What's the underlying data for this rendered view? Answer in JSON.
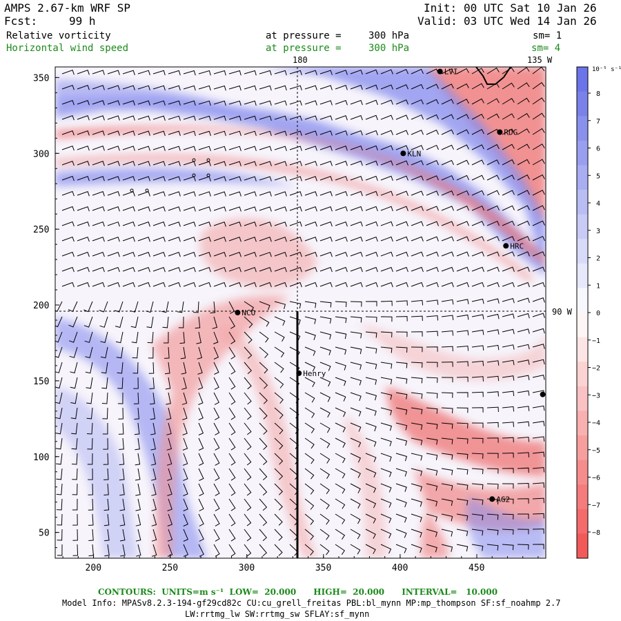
{
  "header": {
    "model_title": "AMPS 2.67-km WRF SP",
    "forecast_label": "Fcst:",
    "forecast_value": "99 h",
    "init_label": "Init:",
    "init_value": "00 UTC Sat 10 Jan 26",
    "valid_label": "Valid:",
    "valid_value": "03 UTC Wed 14 Jan 26"
  },
  "fields": [
    {
      "name": "Relative vorticity",
      "level_label": "at pressure =",
      "level_value": "300 hPa",
      "smoothing": "sm= 1",
      "color": "#000000"
    },
    {
      "name": "Horizontal wind speed",
      "level_label": "at pressure =",
      "level_value": "300 hPa",
      "smoothing": "sm= 4",
      "color": "#1a8a1a"
    }
  ],
  "map": {
    "x_ticks": [
      "200",
      "250",
      "300",
      "350",
      "400",
      "450"
    ],
    "y_ticks": [
      "350",
      "300",
      "250",
      "200",
      "150",
      "100",
      "50"
    ],
    "longitude_labels": {
      "top_180": "180",
      "top_135w": "135 W",
      "right_90w": "90 W"
    },
    "stations": [
      {
        "name": "RDG",
        "i": 465,
        "j": 314
      },
      {
        "name": "KLN",
        "i": 402,
        "j": 300
      },
      {
        "name": "HRC",
        "i": 469,
        "j": 239
      },
      {
        "name": "NCO",
        "i": 294,
        "j": 195
      },
      {
        "name": "Henry",
        "i": 334,
        "j": 155
      },
      {
        "name": "AG2",
        "i": 460,
        "j": 72
      },
      {
        "name": "LVI",
        "i": 426,
        "j": 354
      }
    ],
    "edge_station": {
      "i": 493,
      "j": 141
    },
    "grid_range": {
      "x": [
        175,
        495
      ],
      "y": [
        33,
        357
      ]
    }
  },
  "colorbar": {
    "units": "10⁻⁵ s⁻¹",
    "labels": [
      "8",
      "7",
      "6",
      "5",
      "4",
      "3",
      "2",
      "1",
      "0",
      "−1",
      "−2",
      "−3",
      "−4",
      "−5",
      "−6",
      "−7",
      "−8"
    ],
    "positive_color": "#6b74e8",
    "negative_color": "#f25a5a"
  },
  "footer": {
    "contours": "CONTOURS:  UNITS=m s⁻¹  LOW=  20.000      HIGH=  20.000      INTERVAL=   10.000",
    "model_info_1": "Model Info: MPASv8.2.3-194-gf29cd82c CU:cu_grell_freitas PBL:bl_mynn MP:mp_thompson SF:sf_noahmp 2.7",
    "model_info_2": "LW:rrtmg_lw SW:rrtmg_sw SFLAY:sf_mynn"
  }
}
